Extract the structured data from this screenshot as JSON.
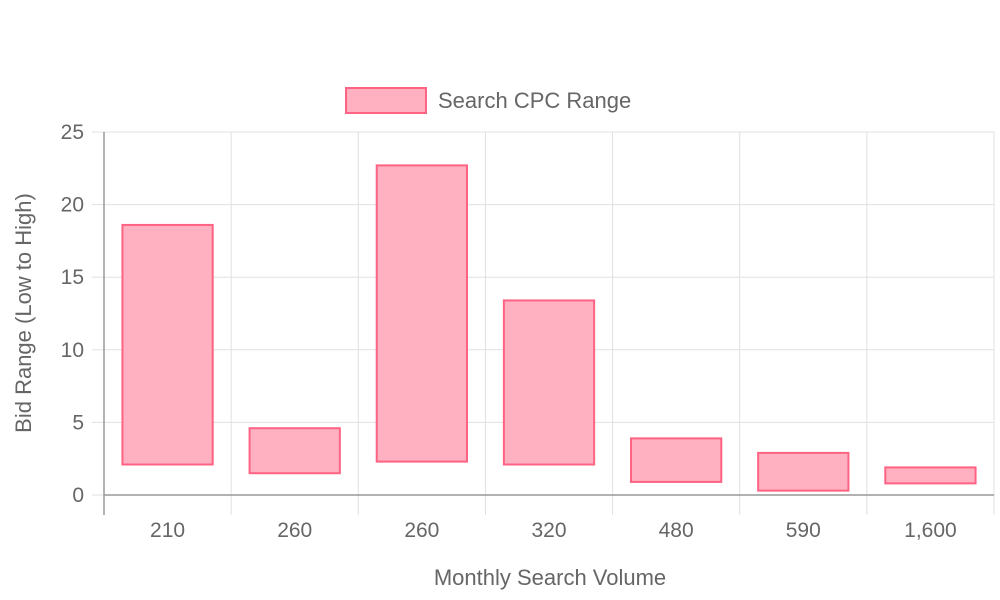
{
  "chart_data": {
    "type": "bar",
    "title": "",
    "xlabel": "Monthly Search Volume",
    "ylabel": "Bid Range (Low to High)",
    "categories": [
      "210",
      "260",
      "260",
      "320",
      "480",
      "590",
      "1,600"
    ],
    "series": [
      {
        "name": "Search CPC Range",
        "ranges": [
          [
            2.1,
            18.6
          ],
          [
            1.5,
            4.6
          ],
          [
            2.3,
            22.7
          ],
          [
            2.1,
            13.4
          ],
          [
            0.9,
            3.9
          ],
          [
            0.3,
            2.9
          ],
          [
            0.8,
            1.9
          ]
        ]
      }
    ],
    "ylim": [
      0,
      25
    ],
    "yticks": [
      0,
      5,
      10,
      15,
      20,
      25
    ],
    "grid": true,
    "legend_position": "top",
    "colors": {
      "bar_fill": "#ffb1c1",
      "bar_stroke": "#ff6384",
      "grid": "#e0e0e0",
      "axis": "#999999",
      "text": "#666666"
    }
  }
}
